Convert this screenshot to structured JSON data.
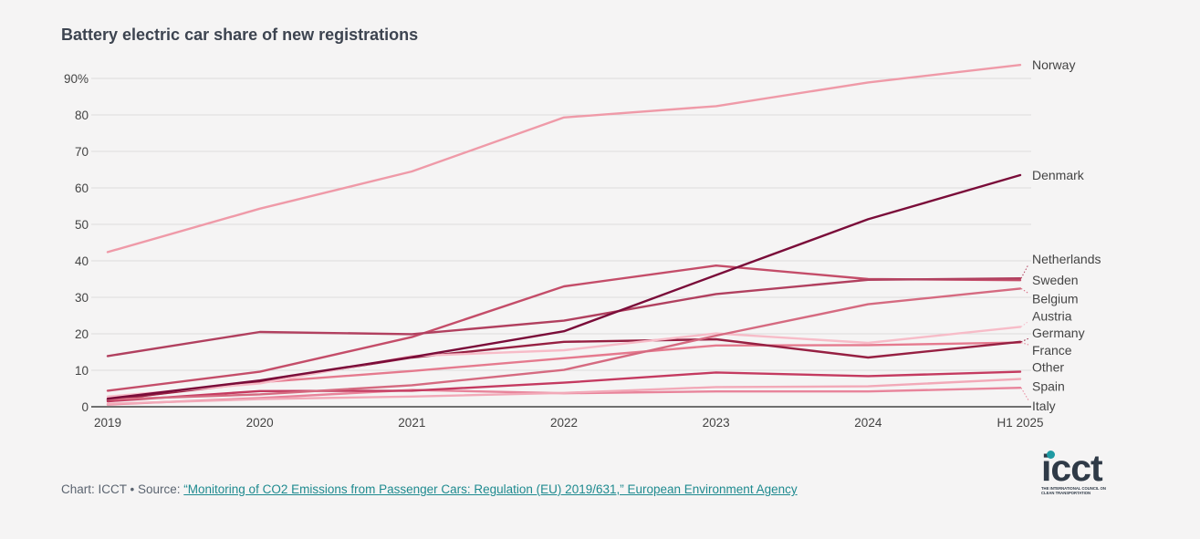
{
  "chart_data": {
    "type": "line",
    "title": "Battery electric car share of new registrations",
    "x": [
      "2019",
      "2020",
      "2021",
      "2022",
      "2023",
      "2024",
      "H1 2025"
    ],
    "ylim": [
      0,
      90
    ],
    "yticks": [
      "0",
      "10",
      "20",
      "30",
      "40",
      "50",
      "60",
      "70",
      "80",
      "90%"
    ],
    "grid": true,
    "legend": "direct labels at right end",
    "series": [
      {
        "name": "Norway",
        "color": "#ef9aa8",
        "values": [
          42.4,
          54.3,
          64.5,
          79.3,
          82.4,
          88.9,
          93.7
        ],
        "label_value": 93.7
      },
      {
        "name": "Denmark",
        "color": "#7a0c39",
        "values": [
          2.2,
          7.2,
          13.6,
          20.7,
          36.1,
          51.4,
          63.5
        ],
        "label_value": 63.5
      },
      {
        "name": "Netherlands",
        "color": "#b1405f",
        "values": [
          13.9,
          20.5,
          19.9,
          23.6,
          30.9,
          34.8,
          35.2
        ],
        "label_value": 40.5
      },
      {
        "name": "Sweden",
        "color": "#c44d69",
        "values": [
          4.4,
          9.6,
          19.1,
          33.0,
          38.7,
          35.0,
          34.7
        ],
        "label_value": 34.8
      },
      {
        "name": "Belgium",
        "color": "#d56a80",
        "values": [
          2.0,
          3.4,
          5.9,
          10.1,
          19.5,
          28.1,
          32.4
        ],
        "label_value": 29.6
      },
      {
        "name": "Austria",
        "color": "#f7bcc8",
        "values": [
          2.8,
          6.4,
          13.9,
          15.5,
          20.1,
          17.5,
          21.9
        ],
        "label_value": 24.9
      },
      {
        "name": "Germany",
        "color": "#962042",
        "values": [
          1.8,
          6.9,
          13.5,
          17.8,
          18.5,
          13.5,
          17.8
        ],
        "label_value": 20.2
      },
      {
        "name": "France",
        "color": "#e57a8e",
        "values": [
          1.9,
          6.7,
          9.8,
          13.3,
          16.8,
          16.9,
          17.6
        ],
        "label_value": 15.5
      },
      {
        "name": "Other",
        "color": "#c43a60",
        "values": [
          1.5,
          4.3,
          4.4,
          6.6,
          9.4,
          8.4,
          9.6
        ],
        "label_value": 10.9
      },
      {
        "name": "Spain",
        "color": "#f2a9b8",
        "values": [
          0.8,
          2.1,
          2.8,
          3.8,
          5.4,
          5.6,
          7.6
        ],
        "label_value": 5.6
      },
      {
        "name": "Italy",
        "color": "#e8849b",
        "values": [
          0.6,
          2.4,
          4.6,
          3.7,
          4.2,
          4.2,
          5.2
        ],
        "label_value": 0.3
      }
    ]
  },
  "footer": {
    "prefix": "Chart: ICCT • Source: ",
    "link_text": "“Monitoring of CO2 Emissions from Passenger Cars: Regulation (EU) 2019/631,” European Environment Agency"
  },
  "logo": {
    "word": "icct",
    "tagline": "THE INTERNATIONAL COUNCIL ON CLEAN TRANSPORTATION"
  }
}
